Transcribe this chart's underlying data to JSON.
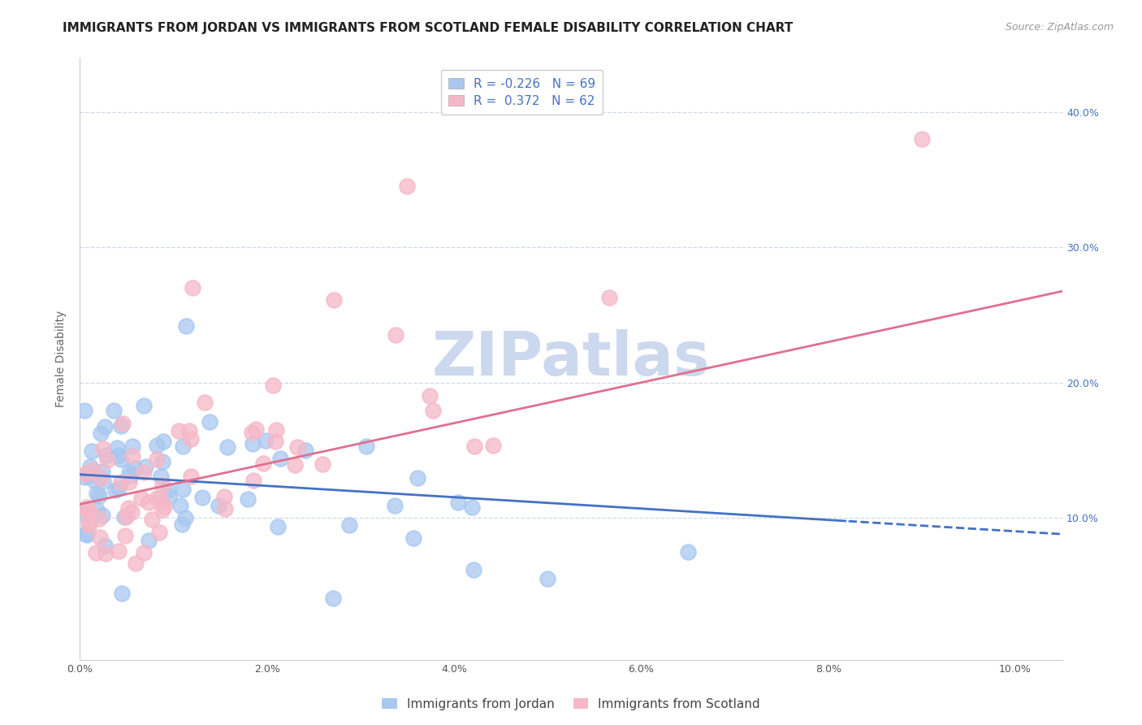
{
  "title": "IMMIGRANTS FROM JORDAN VS IMMIGRANTS FROM SCOTLAND FEMALE DISABILITY CORRELATION CHART",
  "source": "Source: ZipAtlas.com",
  "ylabel": "Female Disability",
  "xlim": [
    0.0,
    0.105
  ],
  "ylim": [
    -0.005,
    0.44
  ],
  "xticks": [
    0.0,
    0.02,
    0.04,
    0.06,
    0.08,
    0.1
  ],
  "yticks": [
    0.1,
    0.2,
    0.3,
    0.4
  ],
  "ytick_labels_right": [
    "10.0%",
    "20.0%",
    "30.0%",
    "40.0%"
  ],
  "xtick_labels": [
    "0.0%",
    "2.0%",
    "4.0%",
    "6.0%",
    "8.0%",
    "10.0%"
  ],
  "jordan_R": -0.226,
  "jordan_N": 69,
  "scotland_R": 0.372,
  "scotland_N": 62,
  "jordan_color": "#a8c8f0",
  "scotland_color": "#f5b8c8",
  "jordan_line_color": "#4472c4",
  "scotland_line_color": "#e07090",
  "background_color": "#ffffff",
  "grid_color": "#d0d8e8",
  "watermark_color": "#ccd8ee",
  "title_fontsize": 11,
  "legend_fontsize": 11,
  "source_fontsize": 9,
  "jordan_intercept": 0.132,
  "jordan_slope": -0.42,
  "scotland_intercept": 0.11,
  "scotland_slope": 1.5,
  "jordan_dash_from": 0.082
}
